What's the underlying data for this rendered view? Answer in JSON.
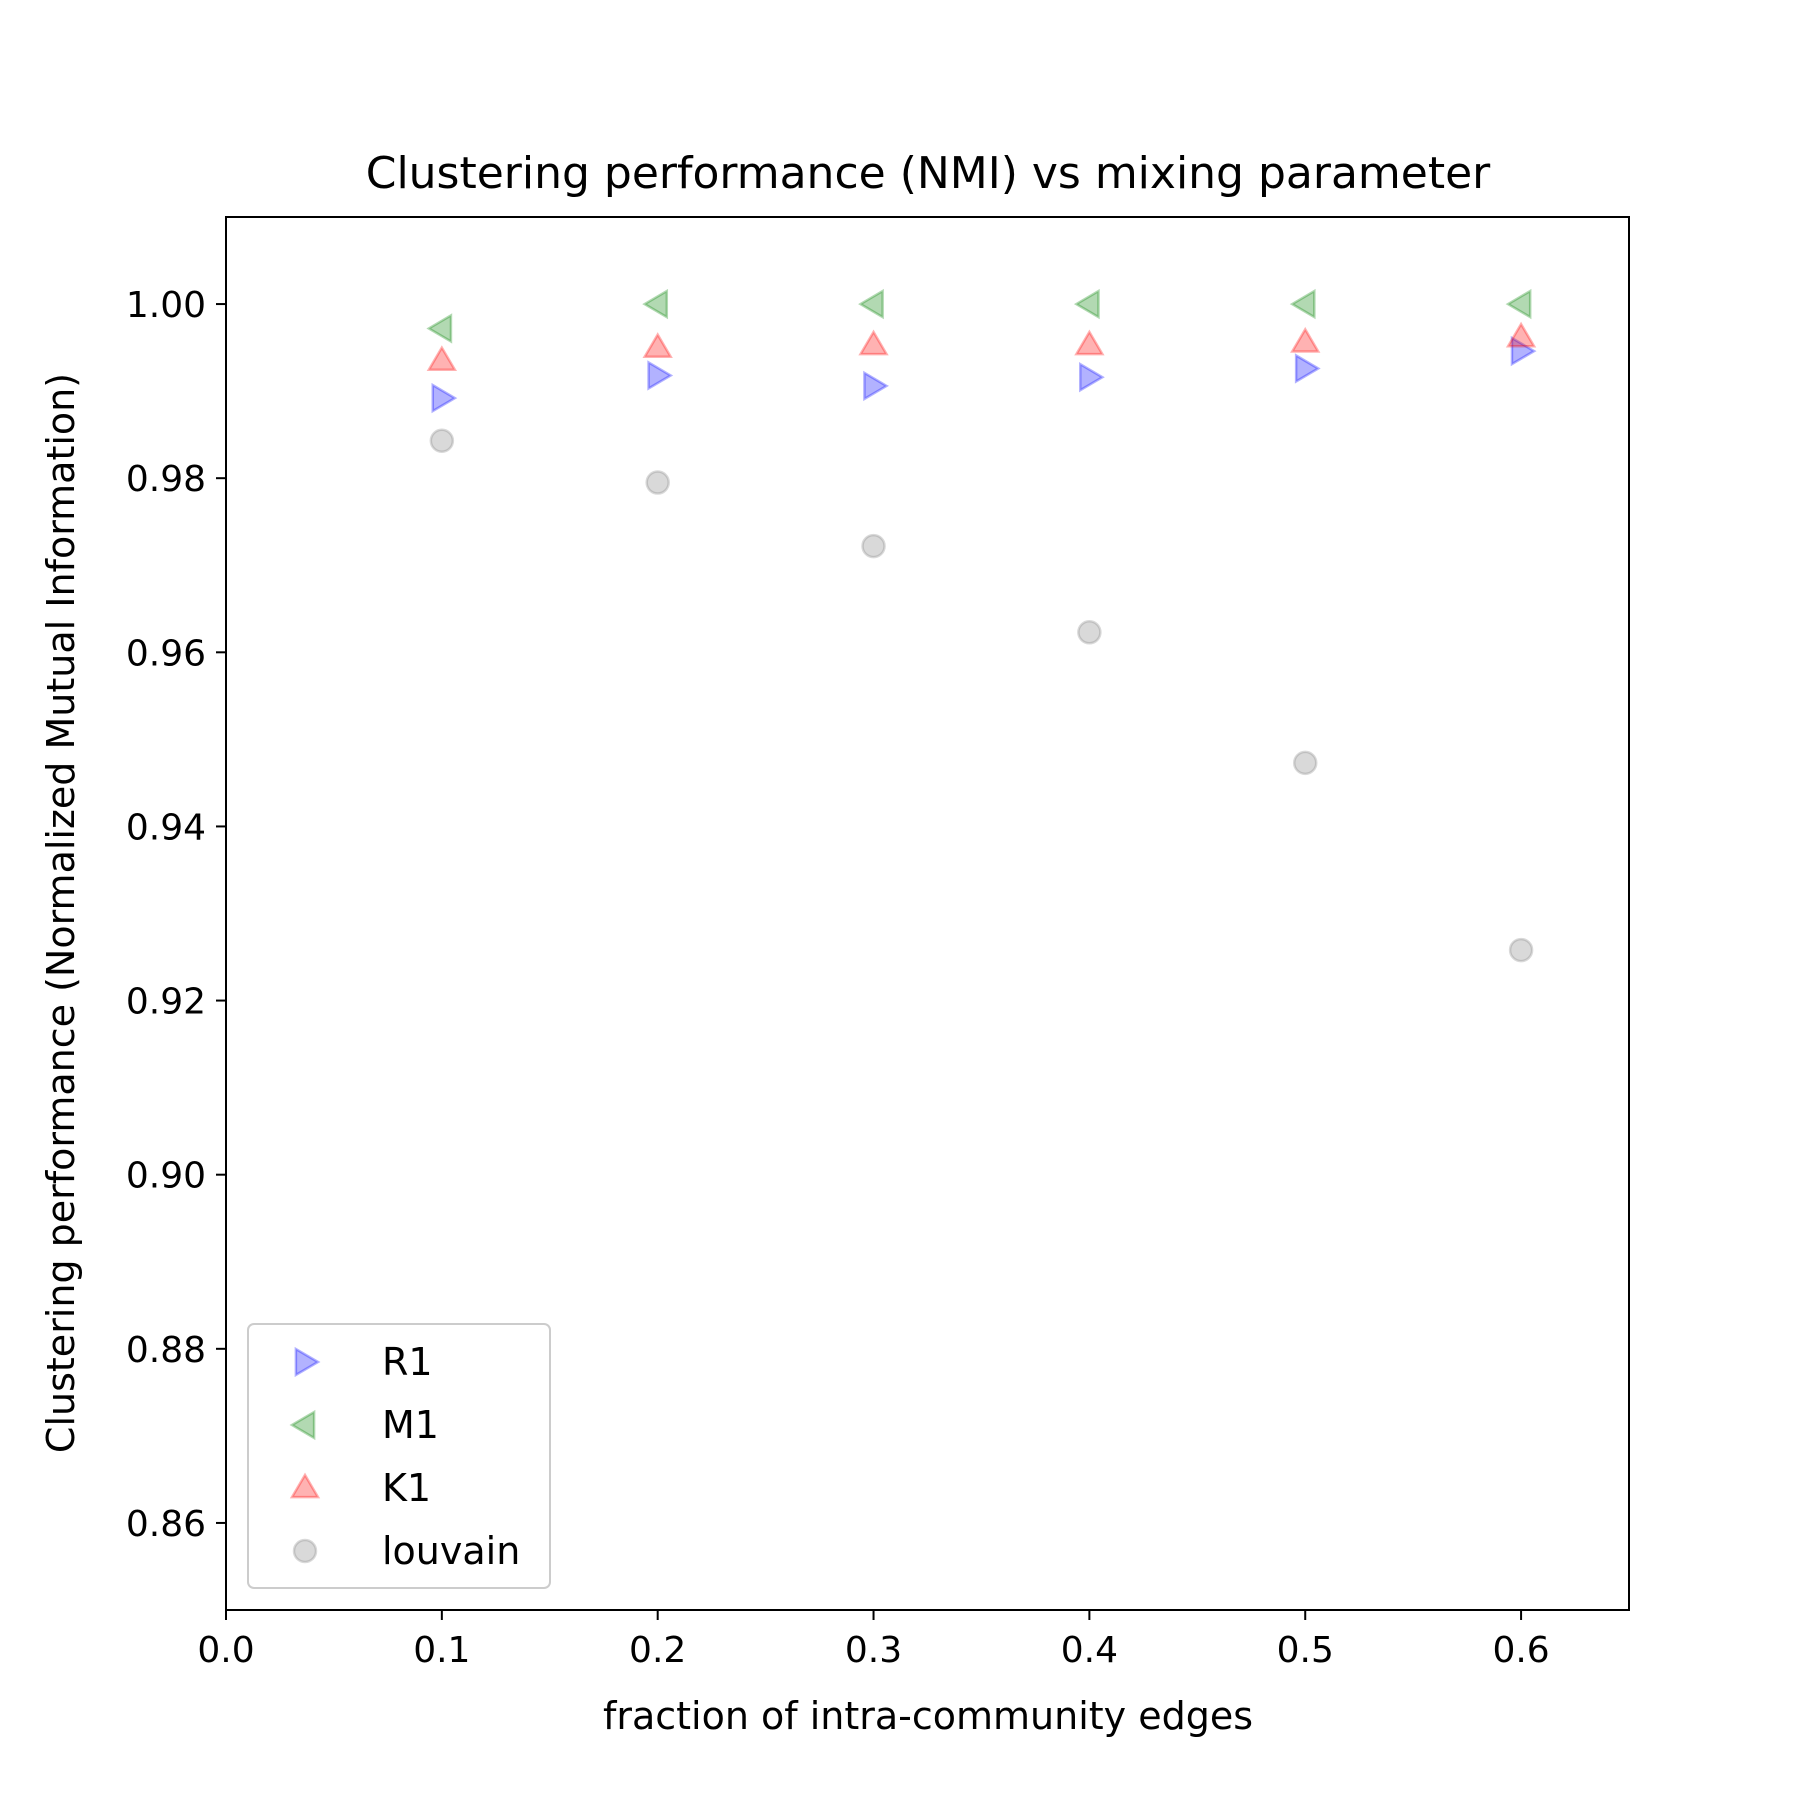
{
  "chart_data": {
    "type": "scatter",
    "title": "Clustering performance (NMI) vs mixing parameter",
    "xlabel": "fraction of intra-community edges",
    "ylabel": "Clustering performance (Normalized Mutual Information)",
    "xlim": [
      0.0,
      0.65
    ],
    "ylim": [
      0.85,
      1.01
    ],
    "xticks": [
      "0.0",
      "0.1",
      "0.2",
      "0.3",
      "0.4",
      "0.5",
      "0.6"
    ],
    "yticks": [
      "0.86",
      "0.88",
      "0.90",
      "0.92",
      "0.94",
      "0.96",
      "0.98",
      "1.00"
    ],
    "grid": false,
    "legend_position": "lower-left",
    "x": [
      0.1,
      0.2,
      0.3,
      0.4,
      0.5,
      0.6
    ],
    "series": [
      {
        "name": "R1",
        "marker": "triangle-right",
        "color": "#0000ff",
        "values": [
          0.9892,
          0.9918,
          0.9906,
          0.9916,
          0.9926,
          0.9946
        ]
      },
      {
        "name": "M1",
        "marker": "triangle-left",
        "color": "#008000",
        "values": [
          0.9972,
          1.0,
          1.0,
          1.0,
          1.0,
          1.0
        ]
      },
      {
        "name": "K1",
        "marker": "triangle-up",
        "color": "#ff0000",
        "values": [
          0.9935,
          0.995,
          0.9953,
          0.9953,
          0.9956,
          0.9962
        ]
      },
      {
        "name": "louvain",
        "marker": "circle",
        "color": "#808080",
        "values": [
          0.9843,
          0.9795,
          0.9722,
          0.9623,
          0.9473,
          0.9258
        ]
      }
    ]
  }
}
